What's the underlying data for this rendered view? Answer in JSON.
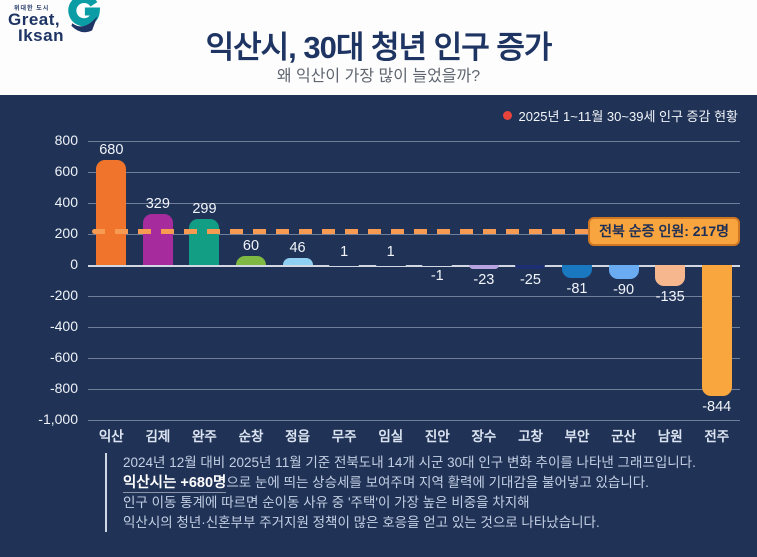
{
  "logo": {
    "tagline": "위대한 도시",
    "line1": "Great,",
    "line2": "Iksan",
    "emblem_color": "#0b9da5",
    "swoosh_color": "#1e3464"
  },
  "header": {
    "title": "익산시, 30대 청년 인구 증가",
    "subtitle": "왜 익산이 가장 많이 늘었을까?"
  },
  "legend": {
    "label": "2025년 1~11월 30~39세 인구 증감 현황",
    "dot_color": "#e8443b"
  },
  "chart_data": {
    "type": "bar",
    "title": "2025년 1~11월 30~39세 인구 증감 현황",
    "categories": [
      "익산",
      "김제",
      "완주",
      "순창",
      "정읍",
      "무주",
      "임실",
      "진안",
      "장수",
      "고창",
      "부안",
      "군산",
      "남원",
      "전주"
    ],
    "values": [
      680,
      329,
      299,
      60,
      46,
      1,
      1,
      -1,
      -23,
      -25,
      -81,
      -90,
      -135,
      -844
    ],
    "bar_colors": [
      "#f0742b",
      "#a62c9e",
      "#129e84",
      "#7fb843",
      "#8fd0f2",
      "#203356",
      "#203356",
      "#203356",
      "#b7a3e2",
      "#1d2f72",
      "#1a78c0",
      "#6aabf2",
      "#f6b68e",
      "#f9a63e"
    ],
    "ylim": [
      -1000,
      800
    ],
    "ytick_step": 200,
    "ytick_labels": [
      "800",
      "600",
      "400",
      "200",
      "0",
      "-200",
      "-400",
      "-600",
      "-800",
      "-1,000"
    ],
    "grid": true,
    "legend_position": "top-right",
    "reference_line": {
      "value": 217,
      "label": "전북 순증 인원: 217명",
      "line_color": "#f79b52",
      "box_bg": "#f9a53f",
      "box_border": "#cf7723",
      "box_text_color": "#1d2f55"
    }
  },
  "footer": {
    "line1": "2024년 12월 대비 2025년 11월 기준 전북도내 14개 시군 30대 인구 변화 추이를 나타낸 그래프입니다.",
    "line2_bold": "익산시는 +680명",
    "line2_rest": "으로 눈에 띄는 상승세를 보여주며 지역 활력에 기대감을 불어넣고 있습니다.",
    "line3": "인구 이동 통계에 따르면 순이동 사유 중 '주택'이 가장 높은 비중을 차지해",
    "line4": "익산시의 청년·신혼부부 주거지원 정책이 많은 호응을 얻고 있는 것으로 나타났습니다."
  },
  "colors": {
    "panel_bg": "#203356",
    "header_bg": "#fdfdfd",
    "title": "#1e3462",
    "subtitle": "#5f6670"
  }
}
